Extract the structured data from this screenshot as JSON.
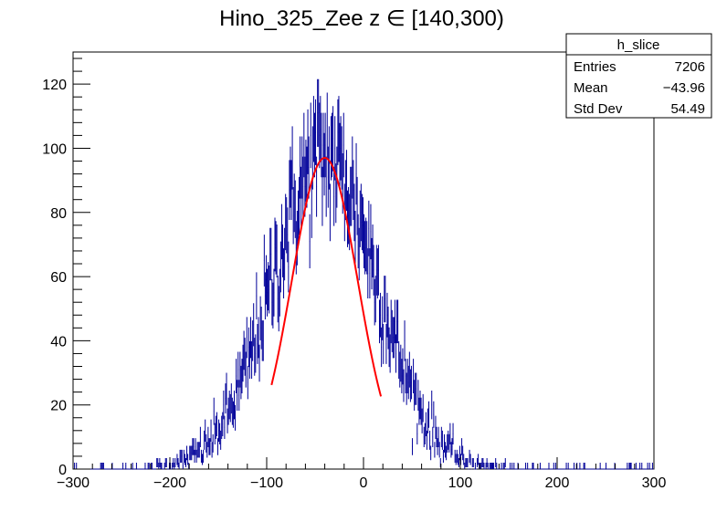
{
  "chart_data": {
    "type": "histogram",
    "title": "Hino_325_Zee z  ∈ [140,300)",
    "xlabel": "",
    "ylabel": "",
    "xlim": [
      -300,
      300
    ],
    "ylim": [
      0,
      130
    ],
    "x_ticks": [
      -300,
      -200,
      -100,
      0,
      100,
      200,
      300
    ],
    "y_ticks": [
      0,
      20,
      40,
      60,
      80,
      100,
      120
    ],
    "grid": false,
    "histogram": {
      "name": "h_slice",
      "color": "#000099",
      "bin_width": 1,
      "gaussian_peak": 97,
      "gaussian_mean": -40,
      "gaussian_sigma": 54
    },
    "fit": {
      "type": "gaussian",
      "color": "#ff0000",
      "constant": 97,
      "mean": -40,
      "sigma": 34,
      "range": [
        -95,
        18
      ]
    },
    "stats_box": {
      "title": "h_slice",
      "rows": [
        {
          "label": "Entries",
          "value": "7206"
        },
        {
          "label": "Mean",
          "value": "−43.96"
        },
        {
          "label": "Std Dev",
          "value": "54.49"
        }
      ]
    }
  }
}
